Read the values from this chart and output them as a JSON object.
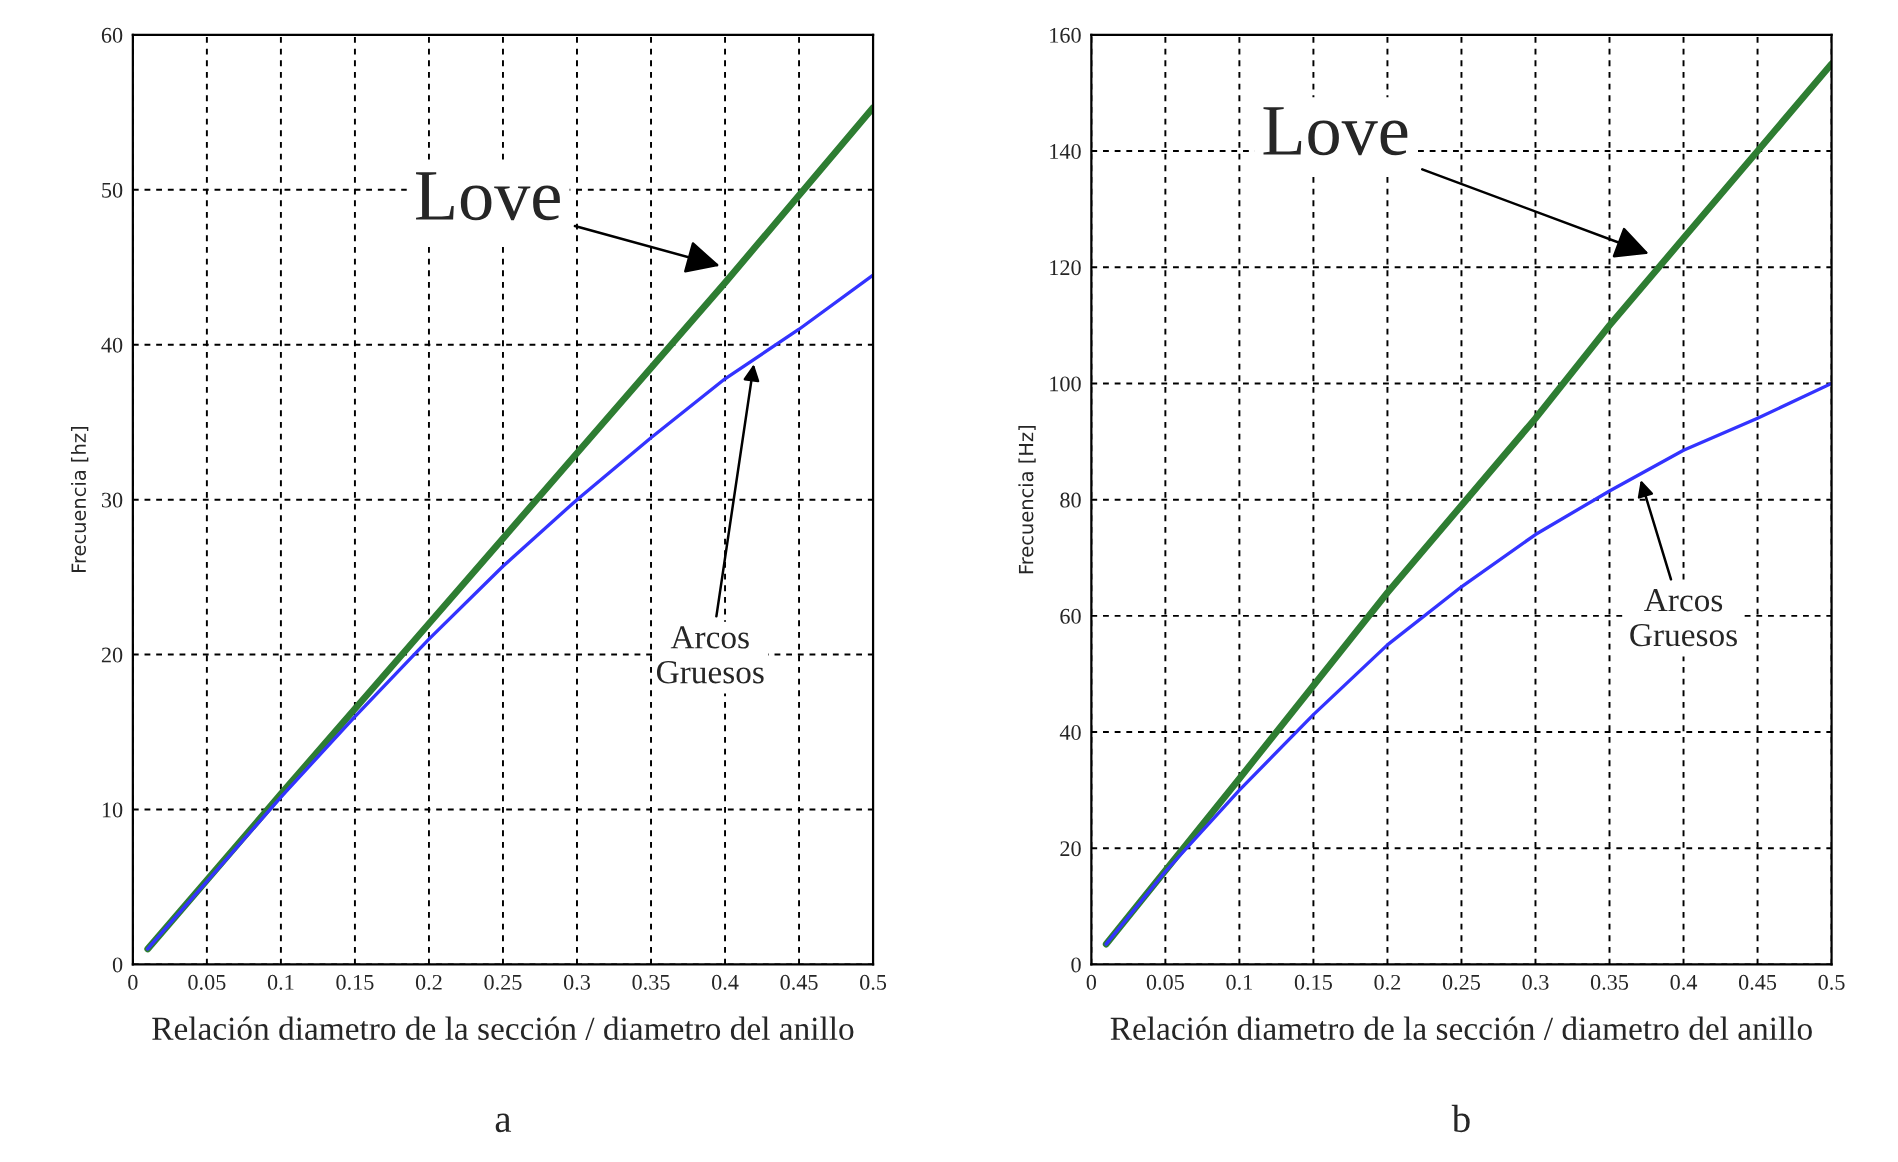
{
  "chart_data": [
    {
      "type": "line",
      "ylabel": "Frecuencia [hz]",
      "xlabel": "Relación diametro de la sección / diametro del anillo",
      "xlim": [
        0,
        0.5
      ],
      "xticks": [
        0,
        0.05,
        0.1,
        0.15,
        0.2,
        0.25,
        0.3,
        0.35,
        0.4,
        0.45,
        0.5
      ],
      "ylim": [
        0,
        60
      ],
      "yticks": [
        0,
        10,
        20,
        30,
        40,
        50,
        60
      ],
      "grid": true,
      "line_style": "solid",
      "marker": "none",
      "series": [
        {
          "color": "#2e7d32",
          "x": [
            0.01,
            0.1,
            0.2,
            0.3,
            0.4,
            0.5
          ],
          "values": [
            1,
            11,
            22,
            33,
            44,
            55.3
          ]
        },
        {
          "color": "#3333ff",
          "x": [
            0.01,
            0.1,
            0.15,
            0.2,
            0.25,
            0.3,
            0.35,
            0.4,
            0.45,
            0.5
          ],
          "values": [
            1,
            10.8,
            16,
            21,
            25.7,
            30,
            34,
            37.8,
            41,
            44.5
          ]
        }
      ],
      "annotations": [
        {
          "text": "Love",
          "x": 0.4,
          "y": 45
        },
        {
          "text": "Arcos\nGruesos",
          "x": 0.42,
          "y": 39.1
        },
        "a"
      ]
    },
    {
      "type": "line",
      "ylabel": "Frecuencia [Hz]",
      "xlabel": "Relación diametro de la sección / diametro del anillo",
      "xlim": [
        0,
        0.5
      ],
      "xticks": [
        0,
        0.05,
        0.1,
        0.15,
        0.2,
        0.25,
        0.3,
        0.35,
        0.4,
        0.45,
        0.5
      ],
      "ylim": [
        0,
        160
      ],
      "yticks": [
        0,
        20,
        40,
        60,
        80,
        100,
        120,
        140,
        160
      ],
      "grid": true,
      "line_style": "solid",
      "marker": "none",
      "series": [
        {
          "color": "#2e7d32",
          "x": [
            0.01,
            0.1,
            0.2,
            0.25,
            0.3,
            0.35,
            0.4,
            0.45,
            0.5
          ],
          "values": [
            3.5,
            32,
            64,
            79,
            94,
            110,
            125,
            140,
            155
          ]
        },
        {
          "color": "#3333ff",
          "x": [
            0.01,
            0.05,
            0.1,
            0.15,
            0.2,
            0.25,
            0.3,
            0.35,
            0.4,
            0.45,
            0.5
          ],
          "values": [
            3.5,
            16,
            30,
            43,
            55,
            65,
            74,
            81.5,
            88.5,
            94,
            100
          ]
        }
      ],
      "annotations": [
        {
          "text": "Love",
          "x": 0.38,
          "y": 122
        },
        {
          "text": "Arcos\nGruesos",
          "x": 0.37,
          "y": 84.3
        },
        "b"
      ]
    }
  ]
}
